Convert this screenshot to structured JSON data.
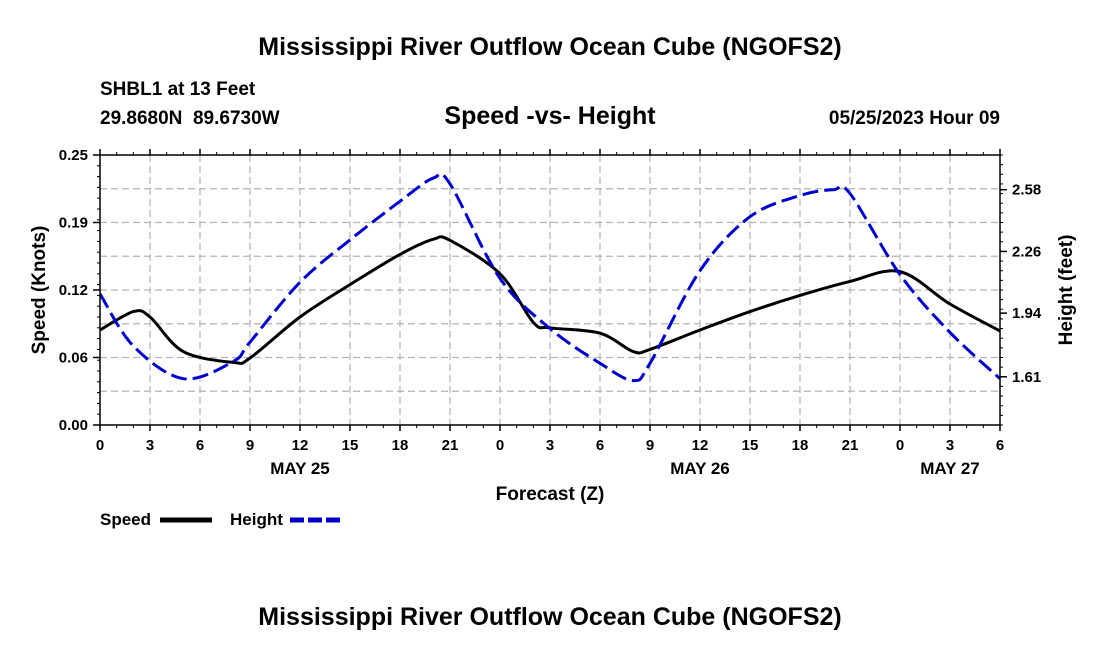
{
  "page": {
    "main_title": "Mississippi River Outflow Ocean Cube (NGOFS2)",
    "footer_title": "Mississippi River Outflow Ocean Cube (NGOFS2)"
  },
  "chart_data": {
    "type": "line",
    "title": "Speed -vs- Height",
    "station_label": "SHBL1 at 13 Feet",
    "coordinates": "29.8680N  89.6730W",
    "timestamp": "05/25/2023 Hour 09",
    "xlabel": "Forecast (Z)",
    "ylabel_left": "Speed (Knots)",
    "ylabel_right": "Height (feet)",
    "x_range": [
      0,
      54
    ],
    "ylim_left": [
      0,
      0.25
    ],
    "ylim_right": [
      1.36,
      2.76
    ],
    "x_ticks": [
      0,
      3,
      6,
      9,
      12,
      15,
      18,
      21,
      24,
      27,
      30,
      33,
      36,
      39,
      42,
      45,
      48,
      51,
      54
    ],
    "x_tick_labels": [
      "0",
      "3",
      "6",
      "9",
      "12",
      "15",
      "18",
      "21",
      "0",
      "3",
      "6",
      "9",
      "12",
      "15",
      "18",
      "21",
      "0",
      "3",
      "6"
    ],
    "date_labels": [
      {
        "x": 12,
        "label": "MAY 25"
      },
      {
        "x": 36,
        "label": "MAY 26"
      },
      {
        "x": 51,
        "label": "MAY 27"
      }
    ],
    "y_ticks_left": [
      {
        "v": 0.0,
        "label": "0.00"
      },
      {
        "v": 0.0625,
        "label": "0.06"
      },
      {
        "v": 0.125,
        "label": "0.12"
      },
      {
        "v": 0.1875,
        "label": "0.19"
      },
      {
        "v": 0.25,
        "label": "0.25"
      }
    ],
    "y_ticks_right": [
      {
        "v": 1.61,
        "label": "1.61"
      },
      {
        "v": 1.94,
        "label": "1.94"
      },
      {
        "v": 2.26,
        "label": "2.26"
      },
      {
        "v": 2.58,
        "label": "2.58"
      }
    ],
    "series": [
      {
        "name": "Speed",
        "axis": "left",
        "color": "#000000",
        "dash": "solid",
        "points": [
          [
            0,
            0.088
          ],
          [
            2,
            0.105
          ],
          [
            3,
            0.1
          ],
          [
            5,
            0.068
          ],
          [
            8,
            0.058
          ],
          [
            9,
            0.062
          ],
          [
            12,
            0.1
          ],
          [
            15,
            0.13
          ],
          [
            18,
            0.158
          ],
          [
            20,
            0.172
          ],
          [
            21,
            0.171
          ],
          [
            24,
            0.14
          ],
          [
            26,
            0.095
          ],
          [
            27,
            0.09
          ],
          [
            30,
            0.085
          ],
          [
            32,
            0.068
          ],
          [
            33,
            0.07
          ],
          [
            36,
            0.088
          ],
          [
            39,
            0.105
          ],
          [
            42,
            0.12
          ],
          [
            45,
            0.133
          ],
          [
            48,
            0.142
          ],
          [
            51,
            0.112
          ],
          [
            54,
            0.087
          ]
        ]
      },
      {
        "name": "Height",
        "axis": "right",
        "color": "#0000cc",
        "dash": "dashed",
        "points": [
          [
            0,
            2.04
          ],
          [
            2,
            1.77
          ],
          [
            5,
            1.6
          ],
          [
            8,
            1.69
          ],
          [
            9,
            1.79
          ],
          [
            12,
            2.1
          ],
          [
            15,
            2.32
          ],
          [
            18,
            2.52
          ],
          [
            20,
            2.64
          ],
          [
            21,
            2.61
          ],
          [
            24,
            2.12
          ],
          [
            27,
            1.86
          ],
          [
            30,
            1.68
          ],
          [
            32,
            1.59
          ],
          [
            33,
            1.68
          ],
          [
            36,
            2.16
          ],
          [
            39,
            2.44
          ],
          [
            42,
            2.55
          ],
          [
            44,
            2.58
          ],
          [
            45,
            2.56
          ],
          [
            48,
            2.14
          ],
          [
            51,
            1.84
          ],
          [
            54,
            1.6
          ]
        ]
      }
    ],
    "legend": [
      {
        "label": "Speed",
        "color": "#000000",
        "dash": "solid"
      },
      {
        "label": "Height",
        "color": "#0000cc",
        "dash": "dashed"
      }
    ],
    "grid": true
  }
}
